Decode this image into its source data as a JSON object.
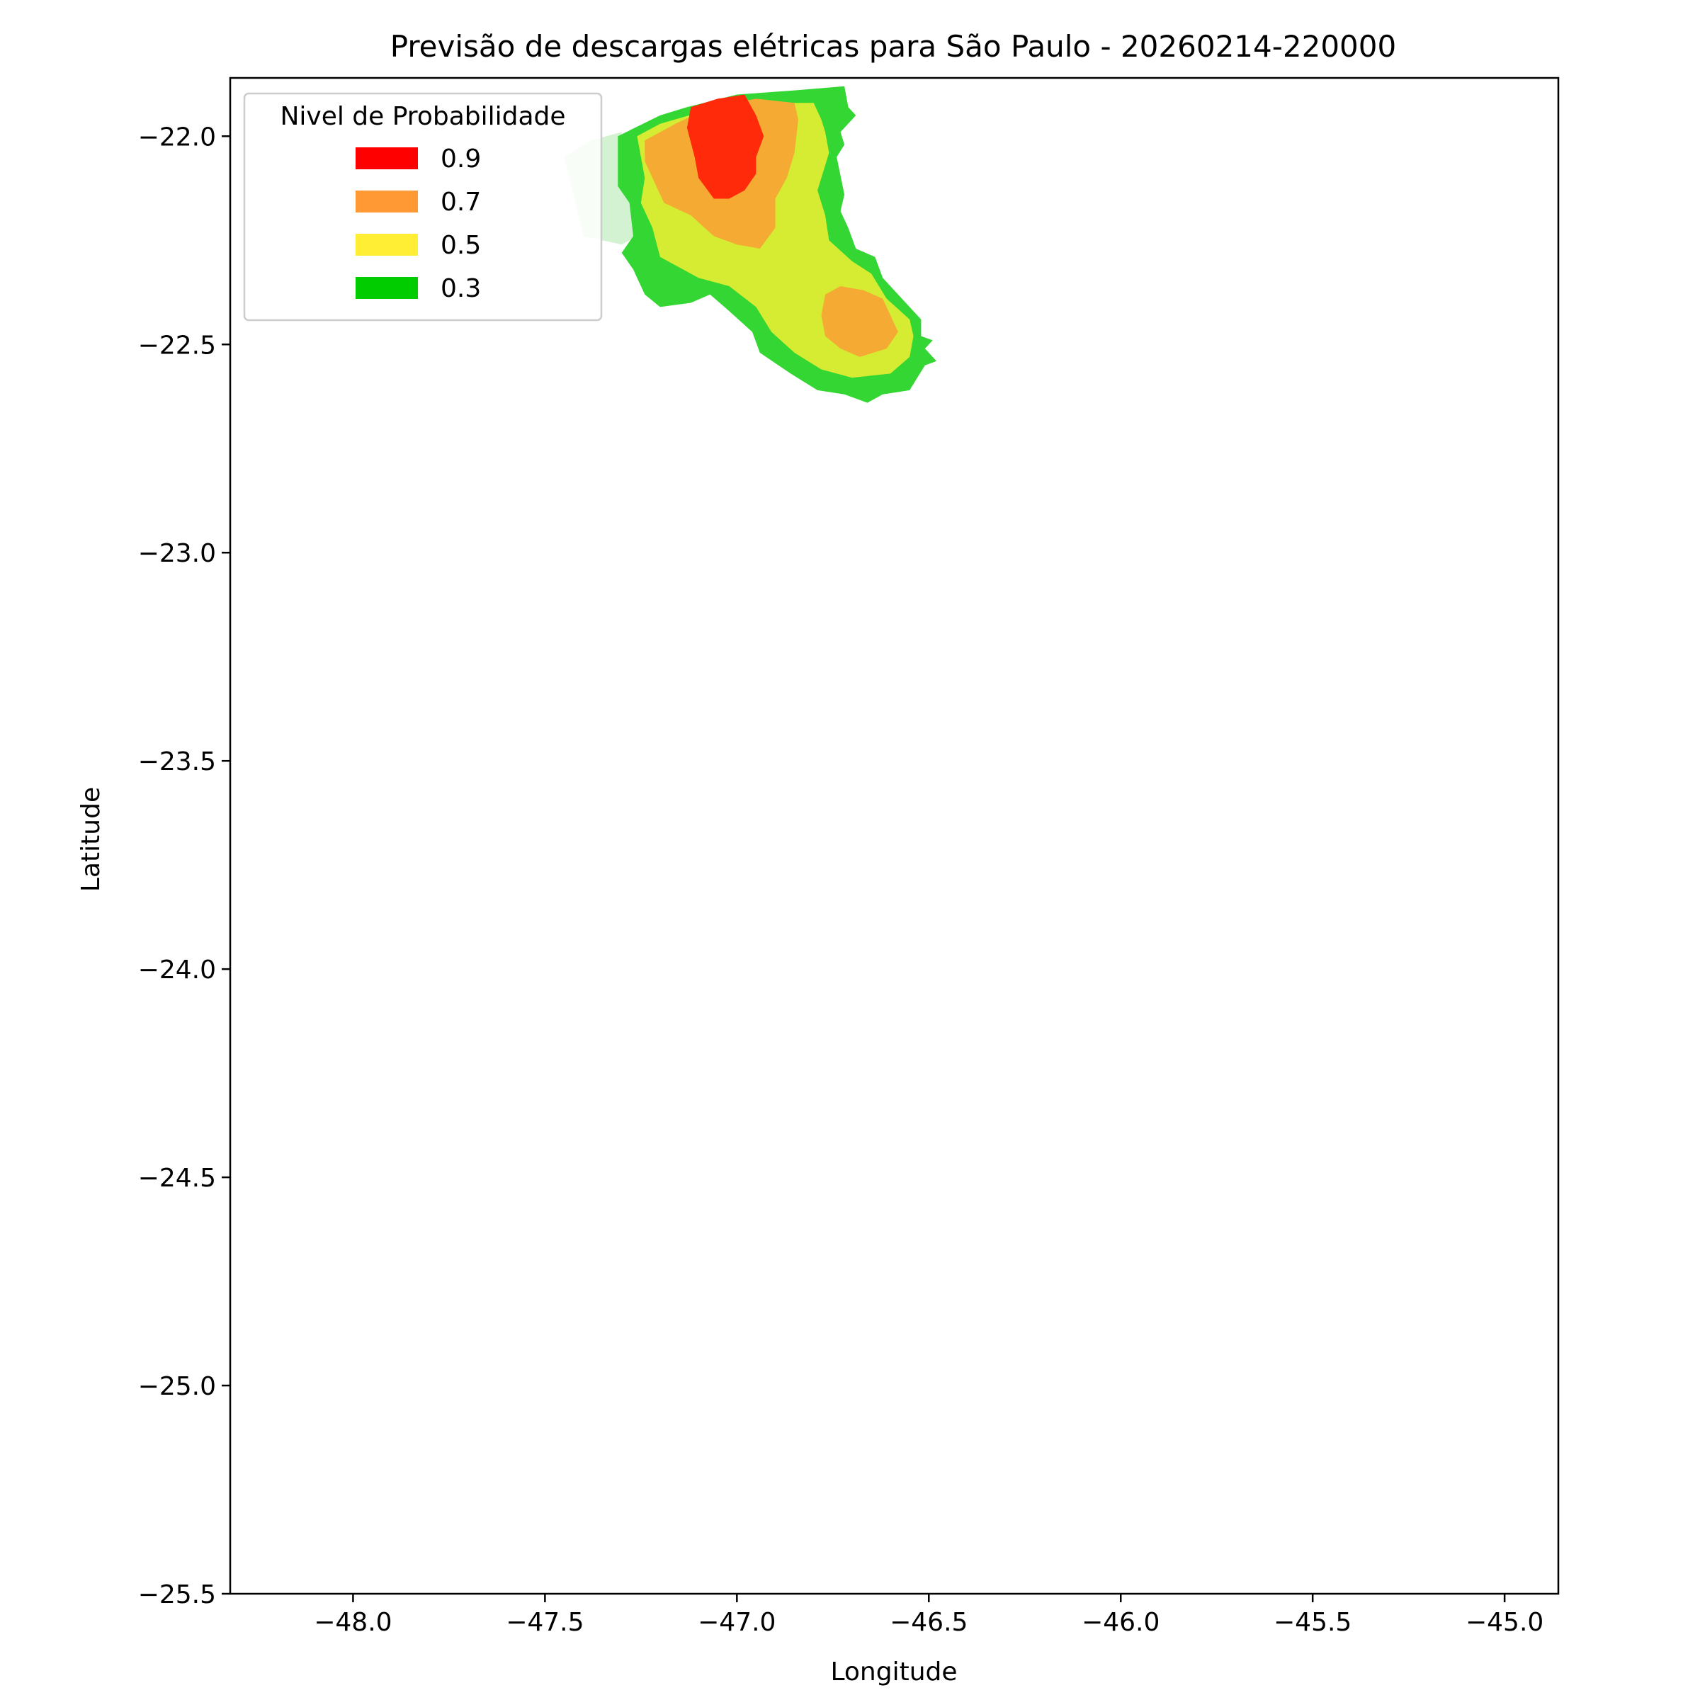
{
  "chart_data": {
    "type": "contour",
    "title": "Previsão de descargas elétricas para São Paulo - 20260214-220000",
    "xlabel": "Longitude",
    "ylabel": "Latitude",
    "xlim": [
      -48.32,
      -44.86
    ],
    "ylim": [
      -25.5,
      -21.86
    ],
    "xticks": [
      -48.0,
      -47.5,
      -47.0,
      -46.5,
      -46.0,
      -45.5,
      -45.0
    ],
    "yticks": [
      -22.0,
      -22.5,
      -23.0,
      -23.5,
      -24.0,
      -24.5,
      -25.0,
      -25.5
    ],
    "xtick_labels": [
      "−48.0",
      "−47.5",
      "−47.0",
      "−46.5",
      "−46.0",
      "−45.5",
      "−45.0"
    ],
    "ytick_labels": [
      "−22.0",
      "−22.5",
      "−23.0",
      "−23.5",
      "−24.0",
      "−24.5",
      "−25.0",
      "−25.5"
    ],
    "legend": {
      "title": "Nivel de Probabilidade",
      "placement": "upper-left",
      "entries": [
        {
          "label": "0.9",
          "color": "#ff0000"
        },
        {
          "label": "0.7",
          "color": "#ff9933"
        },
        {
          "label": "0.5",
          "color": "#ffee33"
        },
        {
          "label": "0.3",
          "color": "#00cc00"
        }
      ]
    },
    "grid": false,
    "levels": [
      {
        "level": "0.1",
        "color": "#d2f2d2",
        "polygon": [
          [
            -47.45,
            -22.05
          ],
          [
            -47.38,
            -22.01
          ],
          [
            -47.3,
            -21.99
          ],
          [
            -47.26,
            -22.24
          ],
          [
            -47.3,
            -22.26
          ],
          [
            -47.4,
            -22.24
          ]
        ]
      },
      {
        "level": "0.3",
        "color": "#33d633",
        "polygon": [
          [
            -47.31,
            -22.0
          ],
          [
            -47.2,
            -21.95
          ],
          [
            -47.13,
            -21.93
          ],
          [
            -47.0,
            -21.9
          ],
          [
            -46.85,
            -21.89
          ],
          [
            -46.72,
            -21.88
          ],
          [
            -46.71,
            -21.93
          ],
          [
            -46.69,
            -21.95
          ],
          [
            -46.73,
            -21.99
          ],
          [
            -46.72,
            -22.02
          ],
          [
            -46.74,
            -22.05
          ],
          [
            -46.72,
            -22.14
          ],
          [
            -46.73,
            -22.18
          ],
          [
            -46.71,
            -22.22
          ],
          [
            -46.69,
            -22.27
          ],
          [
            -46.64,
            -22.29
          ],
          [
            -46.62,
            -22.34
          ],
          [
            -46.57,
            -22.39
          ],
          [
            -46.52,
            -22.44
          ],
          [
            -46.52,
            -22.48
          ],
          [
            -46.49,
            -22.49
          ],
          [
            -46.51,
            -22.51
          ],
          [
            -46.48,
            -22.54
          ],
          [
            -46.51,
            -22.55
          ],
          [
            -46.53,
            -22.58
          ],
          [
            -46.55,
            -22.61
          ],
          [
            -46.62,
            -22.62
          ],
          [
            -46.66,
            -22.64
          ],
          [
            -46.72,
            -22.62
          ],
          [
            -46.79,
            -22.61
          ],
          [
            -46.86,
            -22.57
          ],
          [
            -46.94,
            -22.52
          ],
          [
            -46.96,
            -22.47
          ],
          [
            -47.02,
            -22.42
          ],
          [
            -47.07,
            -22.38
          ],
          [
            -47.12,
            -22.4
          ],
          [
            -47.2,
            -22.41
          ],
          [
            -47.24,
            -22.38
          ],
          [
            -47.27,
            -22.32
          ],
          [
            -47.3,
            -22.28
          ],
          [
            -47.27,
            -22.24
          ],
          [
            -47.28,
            -22.16
          ],
          [
            -47.31,
            -22.12
          ]
        ]
      },
      {
        "level": "0.5",
        "color": "#d5ec33",
        "polygon": [
          [
            -47.26,
            -22.0
          ],
          [
            -47.2,
            -21.97
          ],
          [
            -47.05,
            -21.93
          ],
          [
            -46.9,
            -21.92
          ],
          [
            -46.8,
            -21.92
          ],
          [
            -46.78,
            -21.96
          ],
          [
            -46.77,
            -21.99
          ],
          [
            -46.76,
            -22.04
          ],
          [
            -46.79,
            -22.13
          ],
          [
            -46.77,
            -22.19
          ],
          [
            -46.76,
            -22.25
          ],
          [
            -46.7,
            -22.3
          ],
          [
            -46.65,
            -22.33
          ],
          [
            -46.61,
            -22.39
          ],
          [
            -46.55,
            -22.44
          ],
          [
            -46.54,
            -22.48
          ],
          [
            -46.55,
            -22.53
          ],
          [
            -46.6,
            -22.57
          ],
          [
            -46.7,
            -22.58
          ],
          [
            -46.78,
            -22.56
          ],
          [
            -46.85,
            -22.52
          ],
          [
            -46.91,
            -22.47
          ],
          [
            -46.95,
            -22.41
          ],
          [
            -47.02,
            -22.36
          ],
          [
            -47.1,
            -22.34
          ],
          [
            -47.2,
            -22.29
          ],
          [
            -47.22,
            -22.22
          ],
          [
            -47.25,
            -22.16
          ],
          [
            -47.24,
            -22.1
          ]
        ]
      },
      {
        "level": "0.7",
        "color": "#f5aa33",
        "polygon": [
          [
            -47.24,
            -22.01
          ],
          [
            -47.16,
            -21.97
          ],
          [
            -47.07,
            -21.93
          ],
          [
            -46.95,
            -21.91
          ],
          [
            -46.85,
            -21.92
          ],
          [
            -46.84,
            -21.96
          ],
          [
            -46.85,
            -22.04
          ],
          [
            -46.87,
            -22.1
          ],
          [
            -46.9,
            -22.15
          ],
          [
            -46.9,
            -22.22
          ],
          [
            -46.94,
            -22.27
          ],
          [
            -47.0,
            -22.26
          ],
          [
            -47.06,
            -22.24
          ],
          [
            -47.12,
            -22.19
          ],
          [
            -47.19,
            -22.16
          ],
          [
            -47.22,
            -22.1
          ],
          [
            -47.24,
            -22.06
          ]
        ]
      },
      {
        "level": "0.7",
        "color": "#f5aa33",
        "polygon": [
          [
            -46.77,
            -22.38
          ],
          [
            -46.73,
            -22.36
          ],
          [
            -46.67,
            -22.37
          ],
          [
            -46.62,
            -22.39
          ],
          [
            -46.6,
            -22.43
          ],
          [
            -46.58,
            -22.47
          ],
          [
            -46.61,
            -22.51
          ],
          [
            -46.68,
            -22.53
          ],
          [
            -46.73,
            -22.51
          ],
          [
            -46.77,
            -22.48
          ],
          [
            -46.78,
            -22.43
          ]
        ]
      },
      {
        "level": "0.9",
        "color": "#ff2a0a",
        "polygon": [
          [
            -47.12,
            -21.93
          ],
          [
            -47.05,
            -21.91
          ],
          [
            -46.98,
            -21.9
          ],
          [
            -46.95,
            -21.95
          ],
          [
            -46.93,
            -22.0
          ],
          [
            -46.95,
            -22.05
          ],
          [
            -46.95,
            -22.09
          ],
          [
            -46.98,
            -22.13
          ],
          [
            -47.02,
            -22.15
          ],
          [
            -47.06,
            -22.15
          ],
          [
            -47.1,
            -22.1
          ],
          [
            -47.11,
            -22.05
          ],
          [
            -47.13,
            -21.98
          ]
        ]
      }
    ]
  }
}
